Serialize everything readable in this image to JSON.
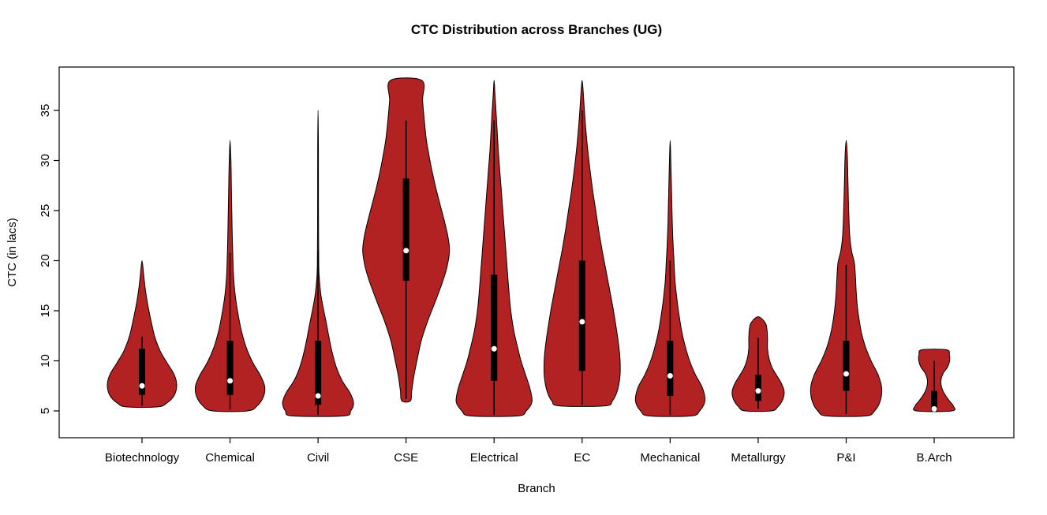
{
  "chart_data": {
    "type": "violin",
    "title": "CTC Distribution across Branches (UG)",
    "xlabel": "Branch",
    "ylabel": "CTC (in lacs)",
    "ylim": [
      4,
      38.5
    ],
    "yticks": [
      5,
      10,
      15,
      20,
      25,
      30,
      35
    ],
    "grid": "off",
    "legend": "none",
    "violin_fill": "#B22222",
    "violin_stroke": "#000000",
    "box_color": "#000000",
    "median_dot_color": "#ffffff",
    "categories": [
      "Biotechnology",
      "Chemical",
      "Civil",
      "CSE",
      "Electrical",
      "EC",
      "Mechanical",
      "Metallurgy",
      "P&I",
      "B.Arch"
    ],
    "series": [
      {
        "name": "Biotechnology",
        "min": 5.4,
        "max": 20,
        "q1": 6.6,
        "median": 7.5,
        "q3": 11.2,
        "whisker_low": 5.5,
        "whisker_high": 12.4,
        "halfwidth": 44,
        "profile": [
          [
            5.4,
            0.45
          ],
          [
            5.8,
            0.72
          ],
          [
            6.5,
            0.92
          ],
          [
            7.5,
            1.0
          ],
          [
            8.6,
            0.93
          ],
          [
            9.8,
            0.72
          ],
          [
            11,
            0.52
          ],
          [
            12.5,
            0.36
          ],
          [
            14,
            0.26
          ],
          [
            15.5,
            0.17
          ],
          [
            17,
            0.1
          ],
          [
            18.5,
            0.05
          ],
          [
            20,
            0.0
          ]
        ]
      },
      {
        "name": "Chemical",
        "min": 5.0,
        "max": 32,
        "q1": 6.6,
        "median": 8.0,
        "q3": 12.0,
        "whisker_low": 5.1,
        "whisker_high": 20.8,
        "halfwidth": 44,
        "profile": [
          [
            5.0,
            0.5
          ],
          [
            5.5,
            0.78
          ],
          [
            6.4,
            0.96
          ],
          [
            7.4,
            1.0
          ],
          [
            8.5,
            0.88
          ],
          [
            9.8,
            0.66
          ],
          [
            11.2,
            0.48
          ],
          [
            12.8,
            0.34
          ],
          [
            14.5,
            0.24
          ],
          [
            16.5,
            0.15
          ],
          [
            18.5,
            0.1
          ],
          [
            21,
            0.075
          ],
          [
            24,
            0.055
          ],
          [
            27,
            0.04
          ],
          [
            30,
            0.025
          ],
          [
            32,
            0.0
          ]
        ]
      },
      {
        "name": "Civil",
        "min": 4.5,
        "max": 35,
        "q1": 5.6,
        "median": 6.5,
        "q3": 12.0,
        "whisker_low": 4.6,
        "whisker_high": 21.0,
        "halfwidth": 45,
        "profile": [
          [
            4.5,
            0.72
          ],
          [
            5.0,
            0.92
          ],
          [
            5.8,
            1.0
          ],
          [
            6.8,
            0.9
          ],
          [
            8.0,
            0.68
          ],
          [
            9.3,
            0.52
          ],
          [
            10.8,
            0.4
          ],
          [
            12.3,
            0.31
          ],
          [
            13.8,
            0.23
          ],
          [
            15.2,
            0.15
          ],
          [
            16.6,
            0.08
          ],
          [
            18,
            0.04
          ],
          [
            19.5,
            0.02
          ],
          [
            24,
            0.013
          ],
          [
            29,
            0.011
          ],
          [
            32,
            0.009
          ],
          [
            35,
            0.0
          ]
        ]
      },
      {
        "name": "CSE",
        "min": 6.0,
        "max": 38,
        "q1": 18.0,
        "median": 21.0,
        "q3": 28.2,
        "whisker_low": 6.2,
        "whisker_high": 34.0,
        "halfwidth": 55,
        "profile": [
          [
            6.0,
            0.1
          ],
          [
            7,
            0.13
          ],
          [
            8.5,
            0.18
          ],
          [
            10,
            0.25
          ],
          [
            12,
            0.35
          ],
          [
            14,
            0.5
          ],
          [
            16,
            0.68
          ],
          [
            18,
            0.85
          ],
          [
            19.5,
            0.95
          ],
          [
            21,
            1.0
          ],
          [
            22.5,
            0.96
          ],
          [
            24,
            0.88
          ],
          [
            25.5,
            0.79
          ],
          [
            27,
            0.7
          ],
          [
            28.5,
            0.62
          ],
          [
            30,
            0.55
          ],
          [
            32,
            0.47
          ],
          [
            34,
            0.42
          ],
          [
            36,
            0.38
          ],
          [
            38,
            0.36
          ]
        ]
      },
      {
        "name": "Electrical",
        "min": 4.5,
        "max": 38,
        "q1": 8.0,
        "median": 11.2,
        "q3": 18.6,
        "whisker_low": 4.6,
        "whisker_high": 34.0,
        "halfwidth": 48,
        "profile": [
          [
            4.5,
            0.62
          ],
          [
            5.0,
            0.85
          ],
          [
            5.9,
            1.0
          ],
          [
            7.2,
            0.95
          ],
          [
            8.6,
            0.83
          ],
          [
            10,
            0.71
          ],
          [
            11.5,
            0.61
          ],
          [
            13,
            0.52
          ],
          [
            15,
            0.44
          ],
          [
            17,
            0.39
          ],
          [
            19,
            0.35
          ],
          [
            21,
            0.31
          ],
          [
            23,
            0.27
          ],
          [
            25,
            0.23
          ],
          [
            27,
            0.19
          ],
          [
            29,
            0.15
          ],
          [
            31,
            0.11
          ],
          [
            33,
            0.08
          ],
          [
            35,
            0.05
          ],
          [
            36.8,
            0.02
          ],
          [
            38,
            0.0
          ]
        ]
      },
      {
        "name": "EC",
        "min": 5.5,
        "max": 38,
        "q1": 9.0,
        "median": 13.9,
        "q3": 20.0,
        "whisker_low": 5.6,
        "whisker_high": 35.0,
        "halfwidth": 48,
        "profile": [
          [
            5.5,
            0.6
          ],
          [
            6.0,
            0.8
          ],
          [
            7.0,
            0.93
          ],
          [
            8.5,
            1.0
          ],
          [
            10.2,
            1.0
          ],
          [
            12,
            0.95
          ],
          [
            13.8,
            0.88
          ],
          [
            15.6,
            0.8
          ],
          [
            17.4,
            0.71
          ],
          [
            19.2,
            0.62
          ],
          [
            21,
            0.53
          ],
          [
            23,
            0.44
          ],
          [
            25,
            0.36
          ],
          [
            27,
            0.28
          ],
          [
            29,
            0.21
          ],
          [
            31,
            0.15
          ],
          [
            33,
            0.1
          ],
          [
            35,
            0.06
          ],
          [
            36.8,
            0.03
          ],
          [
            38,
            0.0
          ]
        ]
      },
      {
        "name": "Mechanical",
        "min": 4.5,
        "max": 32,
        "q1": 6.5,
        "median": 8.5,
        "q3": 12.0,
        "whisker_low": 4.6,
        "whisker_high": 20.0,
        "halfwidth": 44,
        "profile": [
          [
            4.5,
            0.6
          ],
          [
            5.0,
            0.85
          ],
          [
            6.0,
            1.0
          ],
          [
            7.3,
            0.93
          ],
          [
            8.6,
            0.73
          ],
          [
            10,
            0.56
          ],
          [
            11.5,
            0.43
          ],
          [
            13,
            0.33
          ],
          [
            14.5,
            0.26
          ],
          [
            16,
            0.2
          ],
          [
            18,
            0.14
          ],
          [
            20,
            0.11
          ],
          [
            22,
            0.08
          ],
          [
            24,
            0.06
          ],
          [
            27,
            0.04
          ],
          [
            30,
            0.02
          ],
          [
            32,
            0.0
          ]
        ]
      },
      {
        "name": "Metallurgy",
        "min": 5.0,
        "max": 14.4,
        "q1": 6.0,
        "median": 7.0,
        "q3": 8.6,
        "whisker_low": 5.2,
        "whisker_high": 12.3,
        "halfwidth": 33,
        "profile": [
          [
            5.0,
            0.5
          ],
          [
            5.4,
            0.75
          ],
          [
            6.1,
            0.94
          ],
          [
            6.9,
            1.0
          ],
          [
            7.7,
            0.9
          ],
          [
            8.5,
            0.72
          ],
          [
            9.3,
            0.54
          ],
          [
            10.2,
            0.42
          ],
          [
            11.2,
            0.36
          ],
          [
            12.2,
            0.36
          ],
          [
            13.1,
            0.34
          ],
          [
            13.8,
            0.27
          ],
          [
            14.4,
            0.0
          ]
        ]
      },
      {
        "name": "P&I",
        "min": 4.5,
        "max": 32,
        "q1": 7.0,
        "median": 8.7,
        "q3": 12.0,
        "whisker_low": 4.7,
        "whisker_high": 19.6,
        "halfwidth": 45,
        "profile": [
          [
            4.5,
            0.55
          ],
          [
            5.0,
            0.8
          ],
          [
            6.0,
            0.96
          ],
          [
            7.3,
            1.0
          ],
          [
            8.6,
            0.9
          ],
          [
            10,
            0.7
          ],
          [
            11.4,
            0.54
          ],
          [
            12.8,
            0.43
          ],
          [
            14.2,
            0.36
          ],
          [
            15.6,
            0.31
          ],
          [
            17,
            0.28
          ],
          [
            18.4,
            0.26
          ],
          [
            19.8,
            0.23
          ],
          [
            21,
            0.15
          ],
          [
            22.5,
            0.1
          ],
          [
            24.5,
            0.075
          ],
          [
            27,
            0.055
          ],
          [
            29.5,
            0.04
          ],
          [
            31,
            0.025
          ],
          [
            32,
            0.0
          ]
        ]
      },
      {
        "name": "B.Arch",
        "min": 5.0,
        "max": 11.1,
        "q1": 5.0,
        "median": 5.2,
        "q3": 7.0,
        "whisker_low": 5.0,
        "whisker_high": 10.0,
        "halfwidth": 31,
        "profile": [
          [
            5.0,
            0.72
          ],
          [
            5.5,
            0.78
          ],
          [
            6.0,
            0.62
          ],
          [
            6.7,
            0.42
          ],
          [
            7.4,
            0.3
          ],
          [
            8.1,
            0.28
          ],
          [
            8.8,
            0.38
          ],
          [
            9.4,
            0.55
          ],
          [
            10.0,
            0.63
          ],
          [
            10.6,
            0.62
          ],
          [
            11.1,
            0.5
          ]
        ]
      }
    ]
  }
}
